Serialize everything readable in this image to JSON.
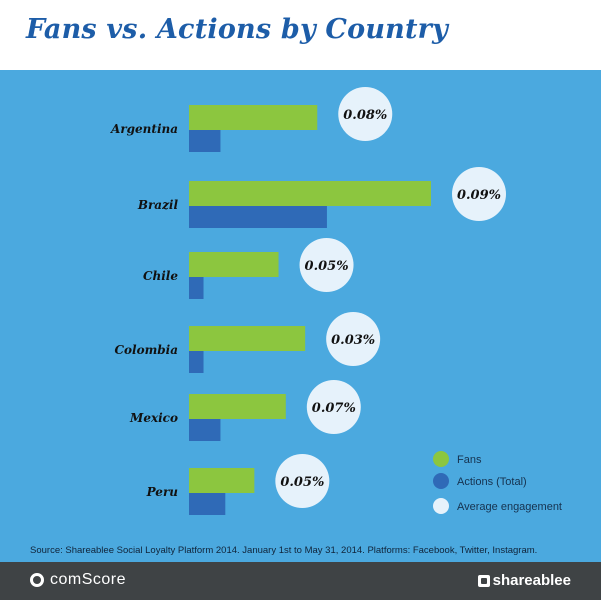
{
  "title": "Fans vs. Actions by Country",
  "source": "Source: Shareablee Social Loyalty Platform 2014. January 1st to May 31, 2014. Platforms: Facebook, Twitter, Instagram.",
  "footer": {
    "left_brand": "comScore",
    "right_brand": "shareablee"
  },
  "colors": {
    "fans": "#8cc63f",
    "actions": "#2f6ab7",
    "engagement": "#e6f2fb",
    "background": "#4ba9df",
    "title": "#1d5da8"
  },
  "chart_data": {
    "type": "bar",
    "orientation": "horizontal",
    "title": "Fans vs. Actions by Country",
    "categories": [
      "Argentina",
      "Brazil",
      "Chile",
      "Colombia",
      "Mexico",
      "Peru"
    ],
    "series": [
      {
        "name": "Fans",
        "values": [
          53,
          100,
          37,
          48,
          40,
          27
        ]
      },
      {
        "name": "Actions (Total)",
        "values": [
          13,
          57,
          6,
          6,
          13,
          15
        ]
      }
    ],
    "engagement": {
      "name": "Average engagement",
      "labels": [
        "0.08%",
        "0.09%",
        "0.05%",
        "0.03%",
        "0.07%",
        "0.05%"
      ]
    },
    "legend": {
      "position": "bottom-right",
      "items": [
        "Fans",
        "Actions (Total)",
        "Average engagement"
      ]
    },
    "grid": false
  }
}
